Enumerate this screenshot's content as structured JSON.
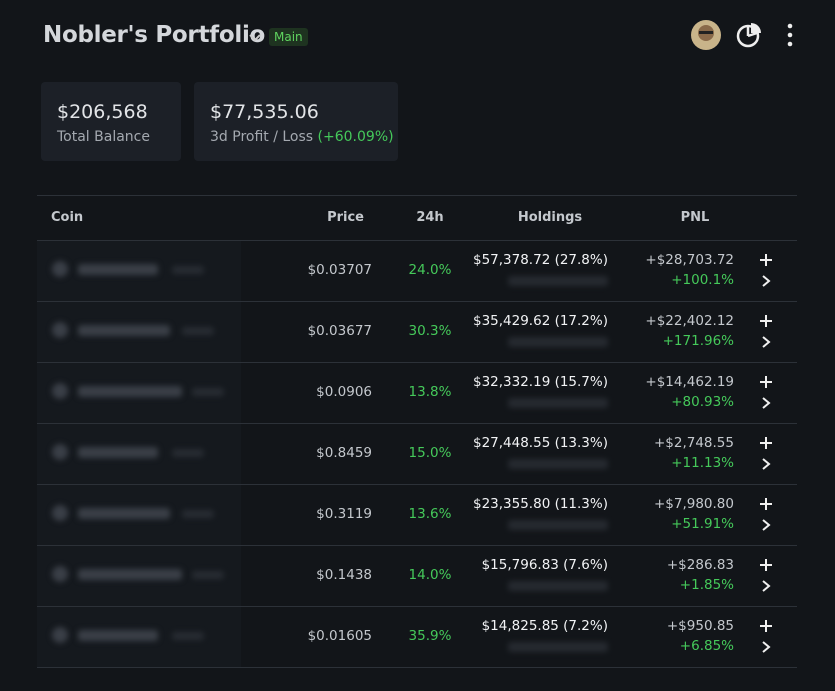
{
  "header": {
    "title": "Nobler's Portfolio",
    "badge": "Main"
  },
  "cards": [
    {
      "value": "$206,568",
      "label": "Total Balance"
    },
    {
      "value": "$77,535.06",
      "label": "3d Profit / Loss",
      "change": "(+60.09%)"
    }
  ],
  "table": {
    "columns": [
      "Coin",
      "Price",
      "24h",
      "Holdings",
      "PNL"
    ],
    "rows": [
      [
        "$0.03707",
        "24.0%",
        "$57,378.72 (27.8%)",
        "+$28,703.72",
        "+100.1%"
      ],
      [
        "$0.03677",
        "30.3%",
        "$35,429.62 (17.2%)",
        "+$22,402.12",
        "+171.96%"
      ],
      [
        "$0.0906",
        "13.8%",
        "$32,332.19 (15.7%)",
        "+$14,462.19",
        "+80.93%"
      ],
      [
        "$0.8459",
        "15.0%",
        "$27,448.55 (13.3%)",
        "+$2,748.55",
        "+11.13%"
      ],
      [
        "$0.3119",
        "13.6%",
        "$23,355.80 (11.3%)",
        "+$7,980.80",
        "+51.91%"
      ],
      [
        "$0.1438",
        "14.0%",
        "$15,796.83 (7.6%)",
        "+$286.83",
        "+1.85%"
      ],
      [
        "$0.01605",
        "35.9%",
        "$14,825.85 (7.2%)",
        "+$950.85",
        "+6.85%"
      ]
    ]
  }
}
